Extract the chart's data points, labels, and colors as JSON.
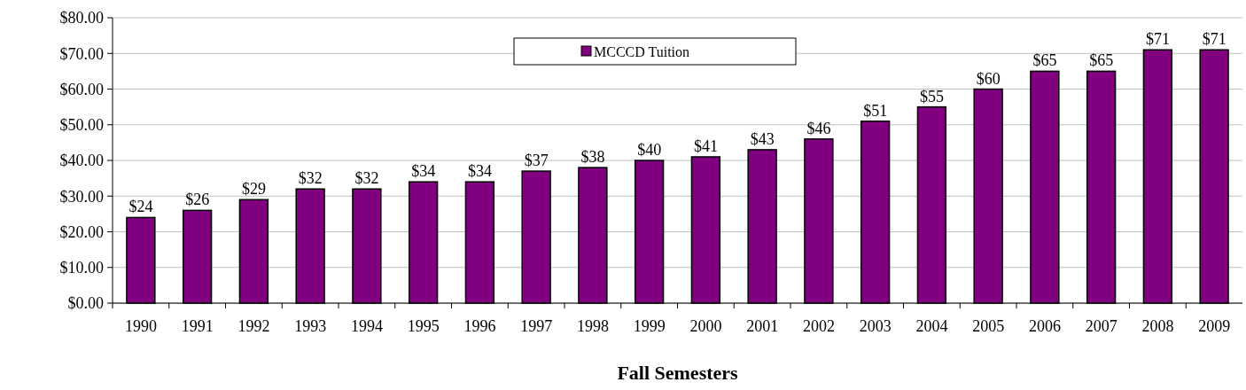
{
  "chart_data": {
    "type": "bar",
    "xlabel": "Fall Semesters",
    "categories": [
      "1990",
      "1991",
      "1992",
      "1993",
      "1994",
      "1995",
      "1996",
      "1997",
      "1998",
      "1999",
      "2000",
      "2001",
      "2002",
      "2003",
      "2004",
      "2005",
      "2006",
      "2007",
      "2008",
      "2009"
    ],
    "series": [
      {
        "name": "MCCCD Tuition",
        "color": "#800080",
        "values": [
          24,
          26,
          29,
          32,
          32,
          34,
          34,
          37,
          38,
          40,
          41,
          43,
          46,
          51,
          55,
          60,
          65,
          65,
          71,
          71
        ],
        "value_labels": [
          "$24",
          "$26",
          "$29",
          "$32",
          "$32",
          "$34",
          "$34",
          "$37",
          "$38",
          "$40",
          "$41",
          "$43",
          "$46",
          "$51",
          "$55",
          "$60",
          "$65",
          "$65",
          "$71",
          "$71"
        ]
      }
    ],
    "ylim": [
      0,
      80
    ],
    "yticks": [
      {
        "value": 0,
        "label": "$0.00"
      },
      {
        "value": 10,
        "label": "$10.00"
      },
      {
        "value": 20,
        "label": "$20.00"
      },
      {
        "value": 30,
        "label": "$30.00"
      },
      {
        "value": 40,
        "label": "$40.00"
      },
      {
        "value": 50,
        "label": "$50.00"
      },
      {
        "value": 60,
        "label": "$60.00"
      },
      {
        "value": 70,
        "label": "$70.00"
      },
      {
        "value": 80,
        "label": "$80.00"
      }
    ],
    "grid": "y",
    "legend": "top"
  }
}
